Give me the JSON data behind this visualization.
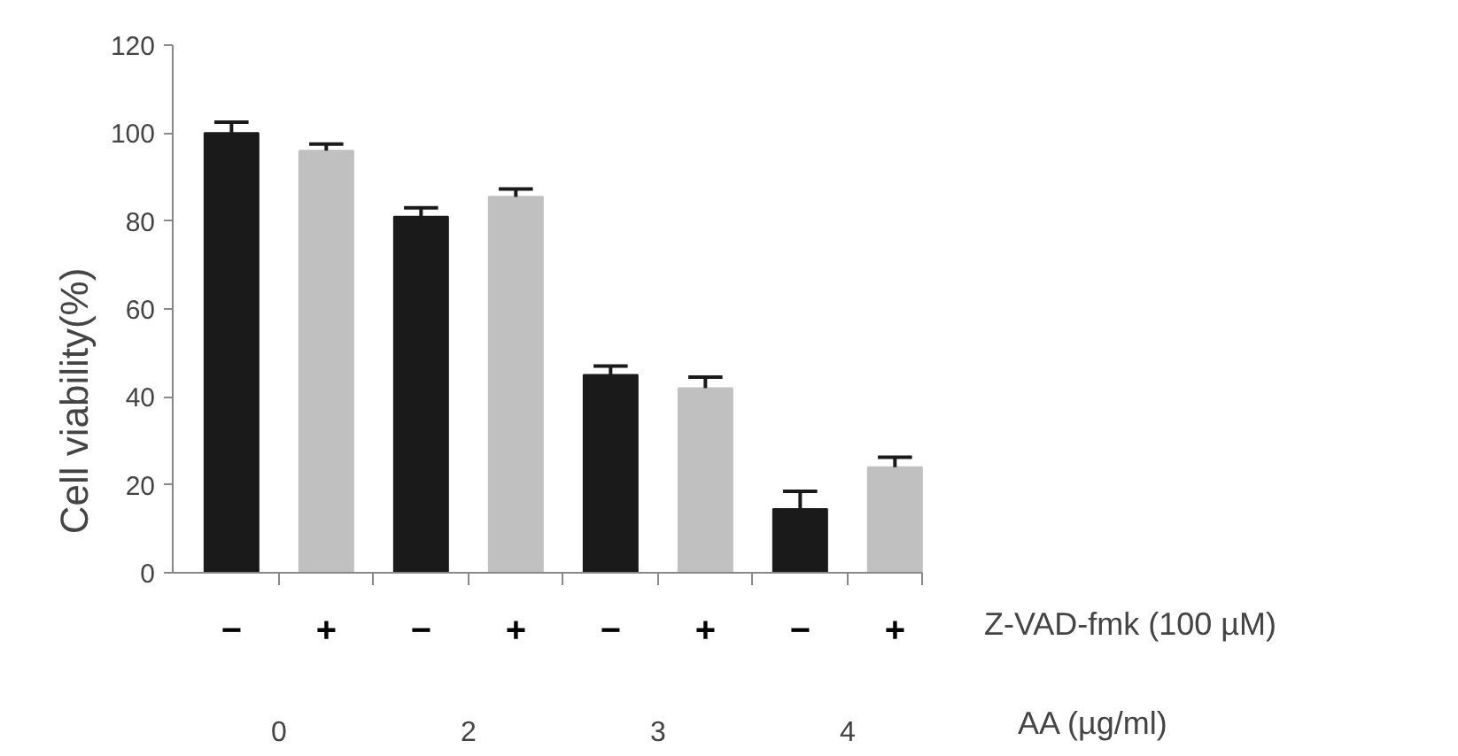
{
  "chart_data": {
    "type": "bar",
    "ylabel": "Cell viability(%)",
    "categories": [
      "−",
      "+",
      "−",
      "+",
      "−",
      "+",
      "−",
      "+"
    ],
    "values": [
      100,
      96,
      81,
      85.5,
      45,
      42,
      14.5,
      24
    ],
    "colors": [
      "#1a1a1a",
      "#c0c0c0",
      "#1a1a1a",
      "#c0c0c0",
      "#1a1a1a",
      "#c0c0c0",
      "#1a1a1a",
      "#c0c0c0"
    ],
    "errors": [
      [
        100,
        102.5
      ],
      [
        96,
        97.5
      ],
      [
        81,
        83
      ],
      [
        85.5,
        87.3
      ],
      [
        45,
        47
      ],
      [
        42,
        44.5
      ],
      [
        14.5,
        18.5
      ],
      [
        24,
        26.3
      ]
    ],
    "ylim": [
      0,
      120
    ],
    "yticks": [
      0,
      20,
      40,
      60,
      80,
      100,
      120
    ],
    "grid": false,
    "annotations": [
      "Z-VAD-fmk (100 µM)",
      "AA (µg/ml)",
      "0",
      "2",
      "3",
      "4"
    ]
  }
}
